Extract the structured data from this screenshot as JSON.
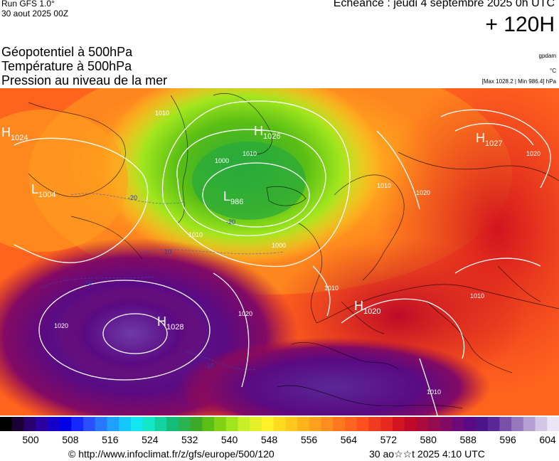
{
  "header": {
    "run_label": "Run GFS 1.0°",
    "run_date": "30 aout 2025 00Z",
    "echeance": "Echéance : jeudi 4 septembre 2025 0h UTC",
    "lead_time": "+ 120H",
    "fields": [
      "Géopotentiel à 500hPa",
      "Température à 500hPa",
      "Pression au niveau de la mer"
    ],
    "unit_gpdam": "gpdam",
    "unit_celsius": "°C",
    "minmax": "[Max 1028.2 | Min 986.4] hPa"
  },
  "map": {
    "pressure_centers": [
      {
        "type": "H",
        "value": "1024"
      },
      {
        "type": "L",
        "value": "1004"
      },
      {
        "type": "H",
        "value": "1026"
      },
      {
        "type": "L",
        "value": "986"
      },
      {
        "type": "H",
        "value": "1027"
      },
      {
        "type": "H",
        "value": "1020"
      },
      {
        "type": "H",
        "value": "1028"
      }
    ],
    "isobar_labels": [
      "1010",
      "1000",
      "1010",
      "1010",
      "1000",
      "1010",
      "1010",
      "1020",
      "1020",
      "1020",
      "1020",
      "1010",
      "1010"
    ],
    "temperature_labels": [
      "-20",
      "-10",
      "-10",
      "-20",
      "-10"
    ]
  },
  "colorbar": {
    "colors": [
      "#000000",
      "#1a0033",
      "#2a006e",
      "#2b00a0",
      "#1400c8",
      "#0000e6",
      "#1428ff",
      "#2850ff",
      "#2878ff",
      "#1ea0ff",
      "#14c8ff",
      "#14e6f0",
      "#14e6c8",
      "#14d2a0",
      "#14be78",
      "#28b450",
      "#3caa28",
      "#5abe14",
      "#82d214",
      "#a0e61e",
      "#c8f028",
      "#e6f028",
      "#fff028",
      "#ffdc1e",
      "#ffc81e",
      "#ffb41e",
      "#ffa01e",
      "#ff8c1e",
      "#ff781e",
      "#ff641e",
      "#ff501e",
      "#f03c1e",
      "#e6281e",
      "#d2141e",
      "#be0a28",
      "#aa0a3c",
      "#960a50",
      "#820a64",
      "#6e0a78",
      "#5a0a82",
      "#4b148c",
      "#5a2896",
      "#7850aa",
      "#9678be",
      "#b4a0d2",
      "#d2c8e6",
      "#ebe6f5"
    ],
    "labels": [
      "500",
      "508",
      "516",
      "524",
      "532",
      "540",
      "548",
      "556",
      "564",
      "572",
      "580",
      "588",
      "596",
      "604"
    ]
  },
  "footer": {
    "copyright": "© http://www.infoclimat.fr/z/gfs/europe/500/120",
    "timestamp": "30 ao☆☆t 2025  4:10 UTC"
  }
}
